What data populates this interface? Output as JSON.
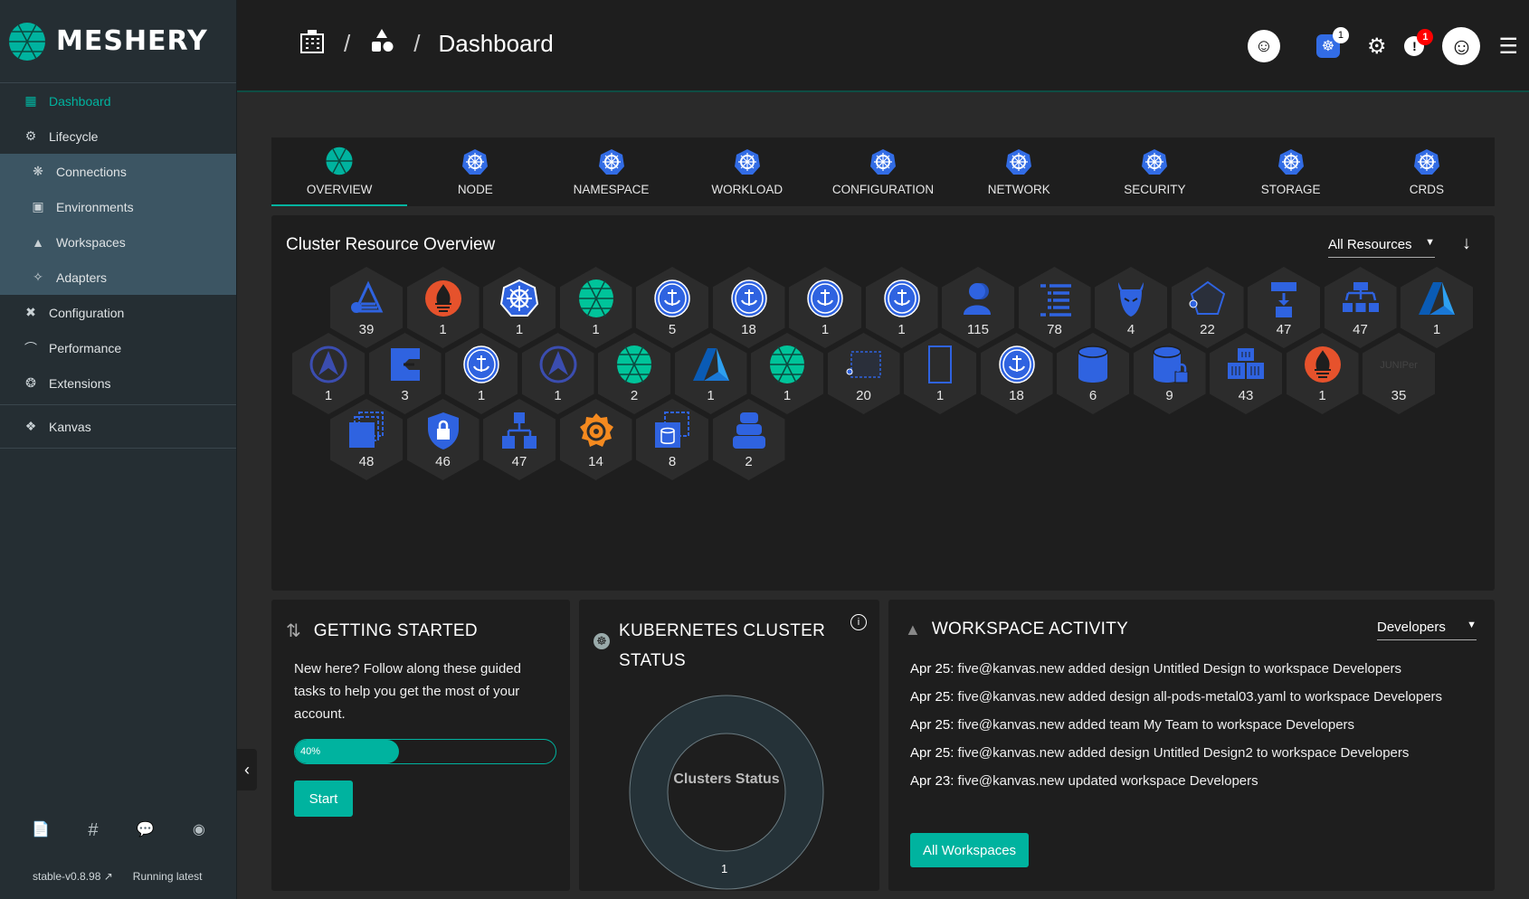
{
  "app": {
    "name": "MESHERY",
    "accent": "#00b39f"
  },
  "sidebar": {
    "items": [
      {
        "label": "Dashboard",
        "icon": "dashboard-icon",
        "active": true
      },
      {
        "label": "Lifecycle",
        "icon": "lifecycle-icon"
      },
      {
        "label": "Connections",
        "icon": "connections-icon",
        "sub": true
      },
      {
        "label": "Environments",
        "icon": "environments-icon",
        "sub": true
      },
      {
        "label": "Workspaces",
        "icon": "workspaces-icon",
        "sub": true
      },
      {
        "label": "Adapters",
        "icon": "adapters-icon",
        "sub": true
      },
      {
        "label": "Configuration",
        "icon": "configuration-icon"
      },
      {
        "label": "Performance",
        "icon": "performance-icon"
      },
      {
        "label": "Extensions",
        "icon": "extensions-icon"
      },
      {
        "label": "Kanvas",
        "icon": "kanvas-icon"
      }
    ],
    "version": "stable-v0.8.98",
    "status": "Running latest"
  },
  "header": {
    "breadcrumb": "Dashboard",
    "k8s_badge": "1",
    "alert_badge": "1"
  },
  "tabs": [
    "OVERVIEW",
    "NODE",
    "NAMESPACE",
    "WORKLOAD",
    "CONFIGURATION",
    "NETWORK",
    "SECURITY",
    "STORAGE",
    "CRDS"
  ],
  "resources": {
    "title": "Cluster Resource Overview",
    "filter": "All Resources",
    "rows": [
      [
        {
          "icon": "argo",
          "count": "39"
        },
        {
          "icon": "prometheus",
          "count": "1"
        },
        {
          "icon": "kubernetes",
          "count": "1"
        },
        {
          "icon": "meshery",
          "count": "1"
        },
        {
          "icon": "cert-manager",
          "count": "5"
        },
        {
          "icon": "cert-manager",
          "count": "18"
        },
        {
          "icon": "cert-manager",
          "count": "1"
        },
        {
          "icon": "cert-manager",
          "count": "1"
        },
        {
          "icon": "user",
          "count": "115"
        },
        {
          "icon": "list",
          "count": "78"
        },
        {
          "icon": "devil",
          "count": "4"
        },
        {
          "icon": "pentagon",
          "count": "22"
        },
        {
          "icon": "flow",
          "count": "47"
        },
        {
          "icon": "hierarchy-3",
          "count": "47"
        },
        {
          "icon": "azure",
          "count": "1"
        }
      ],
      [
        {
          "icon": "argo-circle",
          "count": "1"
        },
        {
          "icon": "pod",
          "count": "3"
        },
        {
          "icon": "cert-manager",
          "count": "1"
        },
        {
          "icon": "argo-circle",
          "count": "1"
        },
        {
          "icon": "meshery",
          "count": "2"
        },
        {
          "icon": "azure",
          "count": "1"
        },
        {
          "icon": "meshery",
          "count": "1"
        },
        {
          "icon": "dashed-rect",
          "count": "20"
        },
        {
          "icon": "rect",
          "count": "1"
        },
        {
          "icon": "cert-manager",
          "count": "18"
        },
        {
          "icon": "database",
          "count": "6"
        },
        {
          "icon": "database-lock",
          "count": "9"
        },
        {
          "icon": "containers",
          "count": "43"
        },
        {
          "icon": "prometheus",
          "count": "1"
        },
        {
          "icon": "juniper",
          "count": "35"
        }
      ],
      [
        {
          "icon": "stacks",
          "count": "48"
        },
        {
          "icon": "shield-lock",
          "count": "46"
        },
        {
          "icon": "hierarchy",
          "count": "47"
        },
        {
          "icon": "grafana",
          "count": "14"
        },
        {
          "icon": "stacked-db",
          "count": "8"
        },
        {
          "icon": "layered-db",
          "count": "2"
        }
      ]
    ]
  },
  "getting_started": {
    "title": "GETTING STARTED",
    "text": "New here? Follow along these guided tasks to help you get the most of your account.",
    "progress": 40,
    "progress_label": "40%",
    "button": "Start"
  },
  "cluster_status": {
    "title": "KUBERNETES CLUSTER STATUS",
    "center": "Clusters Status",
    "count": "1"
  },
  "workspace": {
    "title": "WORKSPACE ACTIVITY",
    "filter": "Developers",
    "button": "All Workspaces",
    "activity": [
      {
        "date": "Apr 25:",
        "text": "five@kanvas.new added design Untitled Design to workspace Developers"
      },
      {
        "date": "Apr 25:",
        "text": "five@kanvas.new added design all-pods-metal03.yaml to workspace Developers"
      },
      {
        "date": "Apr 25:",
        "text": "five@kanvas.new added team My Team to workspace Developers"
      },
      {
        "date": "Apr 25:",
        "text": "five@kanvas.new added design Untitled Design2 to workspace Developers"
      },
      {
        "date": "Apr 23:",
        "text": "five@kanvas.new updated workspace Developers"
      }
    ]
  }
}
